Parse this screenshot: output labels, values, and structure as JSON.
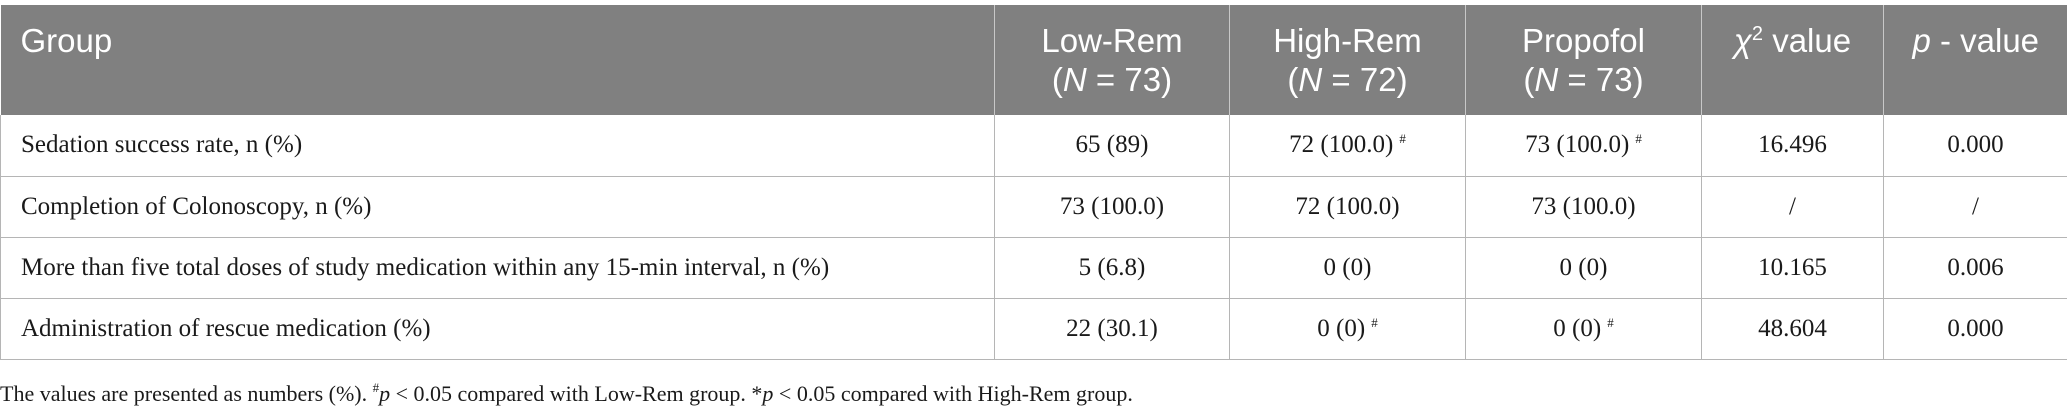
{
  "table": {
    "headers": [
      {
        "line1": "Group",
        "line2": ""
      },
      {
        "line1": "Low-Rem",
        "n_label": "N",
        "n_value": "= 73"
      },
      {
        "line1": "High-Rem",
        "n_label": "N",
        "n_value": "= 72"
      },
      {
        "line1": "Propofol",
        "n_label": "N",
        "n_value": "= 73"
      },
      {
        "chi_symbol": "χ",
        "chi_sup": "2",
        "chi_rest": " value"
      },
      {
        "p_symbol": "p",
        "p_rest": "- value"
      }
    ],
    "rows": [
      {
        "label": "Sedation success rate, n (%)",
        "low_rem": "65 (89)",
        "low_rem_mark": "",
        "high_rem": "72 (100.0)",
        "high_rem_mark": "#",
        "propofol": "73 (100.0)",
        "propofol_mark": "#",
        "chi2": "16.496",
        "p": "0.000"
      },
      {
        "label": "Completion of Colonoscopy, n (%)",
        "low_rem": "73 (100.0)",
        "low_rem_mark": "",
        "high_rem": "72 (100.0)",
        "high_rem_mark": "",
        "propofol": "73 (100.0)",
        "propofol_mark": "",
        "chi2": "/",
        "p": "/"
      },
      {
        "label": "More than five total doses of study medication within any 15-min interval, n (%)",
        "low_rem": "5 (6.8)",
        "low_rem_mark": "",
        "high_rem": "0 (0)",
        "high_rem_mark": "",
        "propofol": "0 (0)",
        "propofol_mark": "",
        "chi2": "10.165",
        "p": "0.006"
      },
      {
        "label": "Administration of rescue medication (%)",
        "low_rem": "22 (30.1)",
        "low_rem_mark": "",
        "high_rem": "0 (0)",
        "high_rem_mark": "#",
        "propofol": "0 (0)",
        "propofol_mark": "#",
        "chi2": "48.604",
        "p": "0.000"
      }
    ]
  },
  "footnote": {
    "part1": "The values are presented as numbers (%). ",
    "mark1": "#",
    "p1": "p",
    "part2": " < 0.05 compared with Low-Rem group. *",
    "p2": "p",
    "part3": " < 0.05 compared with High-Rem group."
  }
}
